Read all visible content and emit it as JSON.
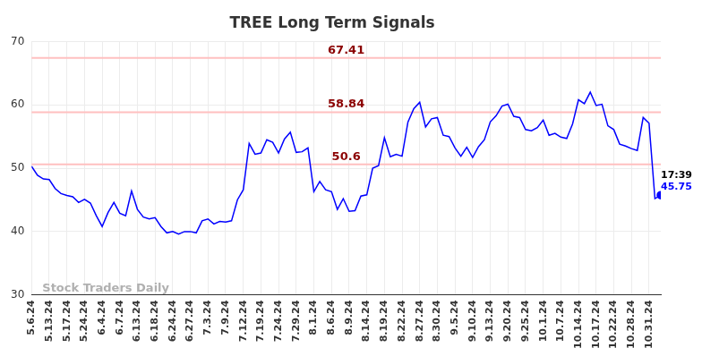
{
  "chart_data": {
    "type": "line",
    "title": "TREE Long Term Signals",
    "watermark": "Stock Traders Daily",
    "categories": [
      "5.6.24",
      null,
      null,
      "5.13.24",
      null,
      null,
      "5.17.24",
      null,
      null,
      "5.24.24",
      null,
      null,
      "6.4.24",
      null,
      null,
      "6.7.24",
      null,
      null,
      "6.13.24",
      null,
      null,
      "6.18.24",
      null,
      null,
      "6.24.24",
      null,
      null,
      "6.27.24",
      null,
      null,
      "7.3.24",
      null,
      null,
      "7.9.24",
      null,
      null,
      "7.12.24",
      null,
      null,
      "7.19.24",
      null,
      null,
      "7.24.24",
      null,
      null,
      "7.29.24",
      null,
      null,
      "8.1.24",
      null,
      null,
      "8.6.24",
      null,
      null,
      "8.9.24",
      null,
      null,
      "8.14.24",
      null,
      null,
      "8.19.24",
      null,
      null,
      "8.22.24",
      null,
      null,
      "8.27.24",
      null,
      null,
      "8.30.24",
      null,
      null,
      "9.5.24",
      null,
      null,
      "9.10.24",
      null,
      null,
      "9.13.24",
      null,
      null,
      "9.20.24",
      null,
      null,
      "9.25.24",
      null,
      null,
      "10.1.24",
      null,
      null,
      "10.7.24",
      null,
      null,
      "10.14.24",
      null,
      null,
      "10.17.24",
      null,
      null,
      "10.22.24",
      null,
      null,
      "10.28.24",
      null,
      null,
      "10.31.24",
      null,
      null
    ],
    "values": [
      50.3,
      48.9,
      48.3,
      48.2,
      46.8,
      46.0,
      45.7,
      45.5,
      44.6,
      45.1,
      44.5,
      42.5,
      40.8,
      43.0,
      44.6,
      42.9,
      42.5,
      46.4,
      43.5,
      42.3,
      42.0,
      42.2,
      40.8,
      39.8,
      40.0,
      39.6,
      40.0,
      40.0,
      39.8,
      41.7,
      42.0,
      41.2,
      41.6,
      41.5,
      41.7,
      45.0,
      46.6,
      53.9,
      52.2,
      52.4,
      54.5,
      54.1,
      52.4,
      54.6,
      55.7,
      52.5,
      52.6,
      53.2,
      46.3,
      47.9,
      46.6,
      46.3,
      43.5,
      45.2,
      43.2,
      43.3,
      45.6,
      45.8,
      50.0,
      50.4,
      54.8,
      51.8,
      52.2,
      51.9,
      57.3,
      59.4,
      60.4,
      56.5,
      57.8,
      58.0,
      55.2,
      55.0,
      53.2,
      51.9,
      53.3,
      51.7,
      53.4,
      54.5,
      57.3,
      58.3,
      59.8,
      60.1,
      58.2,
      58.0,
      56.1,
      55.9,
      56.4,
      57.6,
      55.2,
      55.5,
      54.9,
      54.7,
      57.0,
      60.8,
      60.2,
      62.0,
      59.9,
      60.1,
      56.7,
      56.1,
      53.8,
      53.5,
      53.1,
      52.8,
      58.0,
      57.1,
      45.2,
      45.75
    ],
    "color": "#0000ff",
    "ylim": [
      30,
      70
    ],
    "yticks": [
      30,
      40,
      50,
      60,
      70
    ],
    "grid": true,
    "levels": [
      {
        "value": 67.41,
        "label": "67.41",
        "color": "#ffc0c0",
        "label_color": "#8b0000"
      },
      {
        "value": 58.84,
        "label": "58.84",
        "color": "#ffc0c0",
        "label_color": "#8b0000"
      },
      {
        "value": 50.6,
        "label": "50.6",
        "color": "#ffc0c0",
        "label_color": "#8b0000"
      }
    ],
    "last_point": {
      "time": "17:39",
      "value_label": "45.75"
    }
  }
}
